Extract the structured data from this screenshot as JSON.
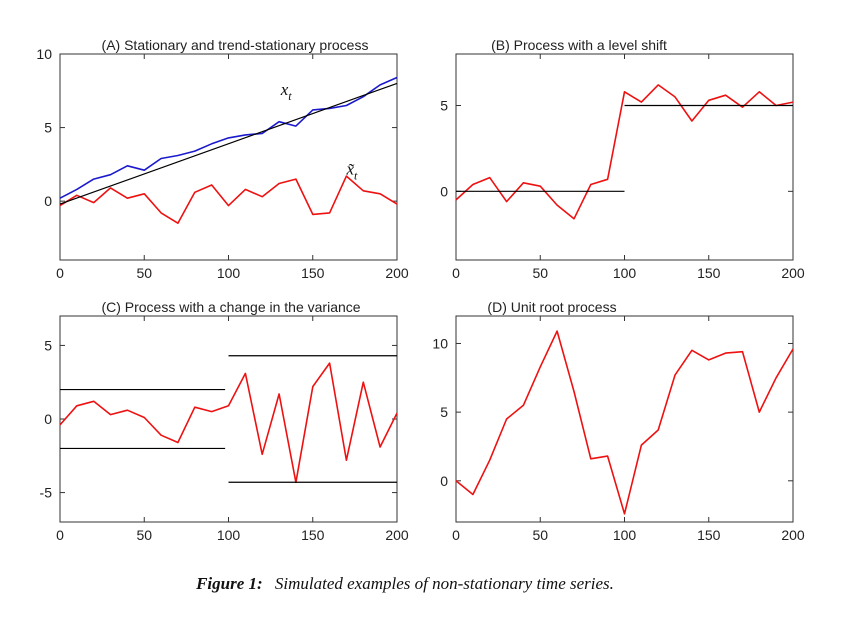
{
  "caption": {
    "lead": "Figure 1:",
    "text": "Simulated examples of non-stationary time series."
  },
  "colors": {
    "red": "#ee1111",
    "blue": "#1a1acc",
    "black": "#000000"
  },
  "chart_data": [
    {
      "id": "A",
      "type": "line",
      "title": "(A) Stationary and trend-stationary process",
      "xlim": [
        0,
        200
      ],
      "ylim": [
        -4,
        10
      ],
      "x_ticks": [
        0,
        50,
        100,
        150,
        200
      ],
      "y_ticks": [
        0,
        5,
        10
      ],
      "annotations": [
        {
          "label": "x",
          "sub": "t",
          "x": 131,
          "y": 7.2
        },
        {
          "label": "x̃",
          "sub": "t",
          "x": 170,
          "y": 1.8
        }
      ],
      "series": [
        {
          "name": "x_t",
          "color": "#1a1acc",
          "x_step": 10,
          "values": [
            0.2,
            0.8,
            1.5,
            1.8,
            2.4,
            2.1,
            2.9,
            3.1,
            3.4,
            3.9,
            4.3,
            4.5,
            4.6,
            5.4,
            5.1,
            6.2,
            6.3,
            6.5,
            7.1,
            7.9,
            8.4
          ]
        },
        {
          "name": "x̃_t",
          "color": "#ee1111",
          "x_step": 10,
          "values": [
            -0.3,
            0.4,
            -0.1,
            0.9,
            0.2,
            0.5,
            -0.8,
            -1.5,
            0.6,
            1.1,
            -0.3,
            0.8,
            0.3,
            1.2,
            1.5,
            -0.9,
            -0.8,
            1.7,
            0.7,
            0.5,
            -0.2
          ]
        },
        {
          "name": "trend",
          "color": "#000000",
          "line_x": [
            0,
            200
          ],
          "line_y": [
            -0.2,
            8.0
          ]
        }
      ]
    },
    {
      "id": "B",
      "type": "line",
      "title": "(B) Process with a level shift",
      "xlim": [
        0,
        200
      ],
      "ylim": [
        -4,
        8
      ],
      "x_ticks": [
        0,
        50,
        100,
        150,
        200
      ],
      "y_ticks": [
        0,
        5
      ],
      "series": [
        {
          "name": "level-shift",
          "color": "#ee1111",
          "x_step": 10,
          "values": [
            -0.5,
            0.4,
            0.8,
            -0.6,
            0.5,
            0.3,
            -0.8,
            -1.6,
            0.4,
            0.7,
            5.8,
            5.2,
            6.2,
            5.5,
            4.1,
            5.3,
            5.6,
            4.9,
            5.8,
            5.0,
            5.2
          ]
        },
        {
          "name": "mean-before",
          "color": "#000000",
          "line_x": [
            0,
            100
          ],
          "line_y": [
            0,
            0
          ]
        },
        {
          "name": "mean-after",
          "color": "#000000",
          "line_x": [
            100,
            200
          ],
          "line_y": [
            5,
            5
          ]
        }
      ]
    },
    {
      "id": "C",
      "type": "line",
      "title": "(C) Process with a change in the variance",
      "xlim": [
        0,
        200
      ],
      "ylim": [
        -7,
        7
      ],
      "x_ticks": [
        0,
        50,
        100,
        150,
        200
      ],
      "y_ticks": [
        -5,
        0,
        5
      ],
      "series": [
        {
          "name": "variance-change",
          "color": "#ee1111",
          "x_step": 10,
          "values": [
            -0.4,
            0.9,
            1.2,
            0.3,
            0.6,
            0.1,
            -1.1,
            -1.6,
            0.8,
            0.5,
            0.9,
            3.1,
            -2.4,
            1.7,
            -4.3,
            2.2,
            3.8,
            -2.8,
            2.5,
            -1.9,
            0.4
          ]
        },
        {
          "name": "band-upper-1",
          "color": "#000000",
          "line_x": [
            0,
            98
          ],
          "line_y": [
            2,
            2
          ]
        },
        {
          "name": "band-lower-1",
          "color": "#000000",
          "line_x": [
            0,
            98
          ],
          "line_y": [
            -2,
            -2
          ]
        },
        {
          "name": "band-upper-2",
          "color": "#000000",
          "line_x": [
            100,
            200
          ],
          "line_y": [
            4.3,
            4.3
          ]
        },
        {
          "name": "band-lower-2",
          "color": "#000000",
          "line_x": [
            100,
            200
          ],
          "line_y": [
            -4.3,
            -4.3
          ]
        }
      ]
    },
    {
      "id": "D",
      "type": "line",
      "title": "(D) Unit root process",
      "xlim": [
        0,
        200
      ],
      "ylim": [
        -3,
        12
      ],
      "x_ticks": [
        0,
        50,
        100,
        150,
        200
      ],
      "y_ticks": [
        0,
        5,
        10
      ],
      "series": [
        {
          "name": "unit-root",
          "color": "#ee1111",
          "x_step": 10,
          "values": [
            0,
            -1.0,
            1.5,
            4.5,
            5.5,
            8.3,
            10.9,
            6.5,
            1.6,
            1.8,
            -2.4,
            2.6,
            3.7,
            7.7,
            9.5,
            8.8,
            9.3,
            9.4,
            5.0,
            7.5,
            9.6
          ]
        }
      ]
    }
  ]
}
